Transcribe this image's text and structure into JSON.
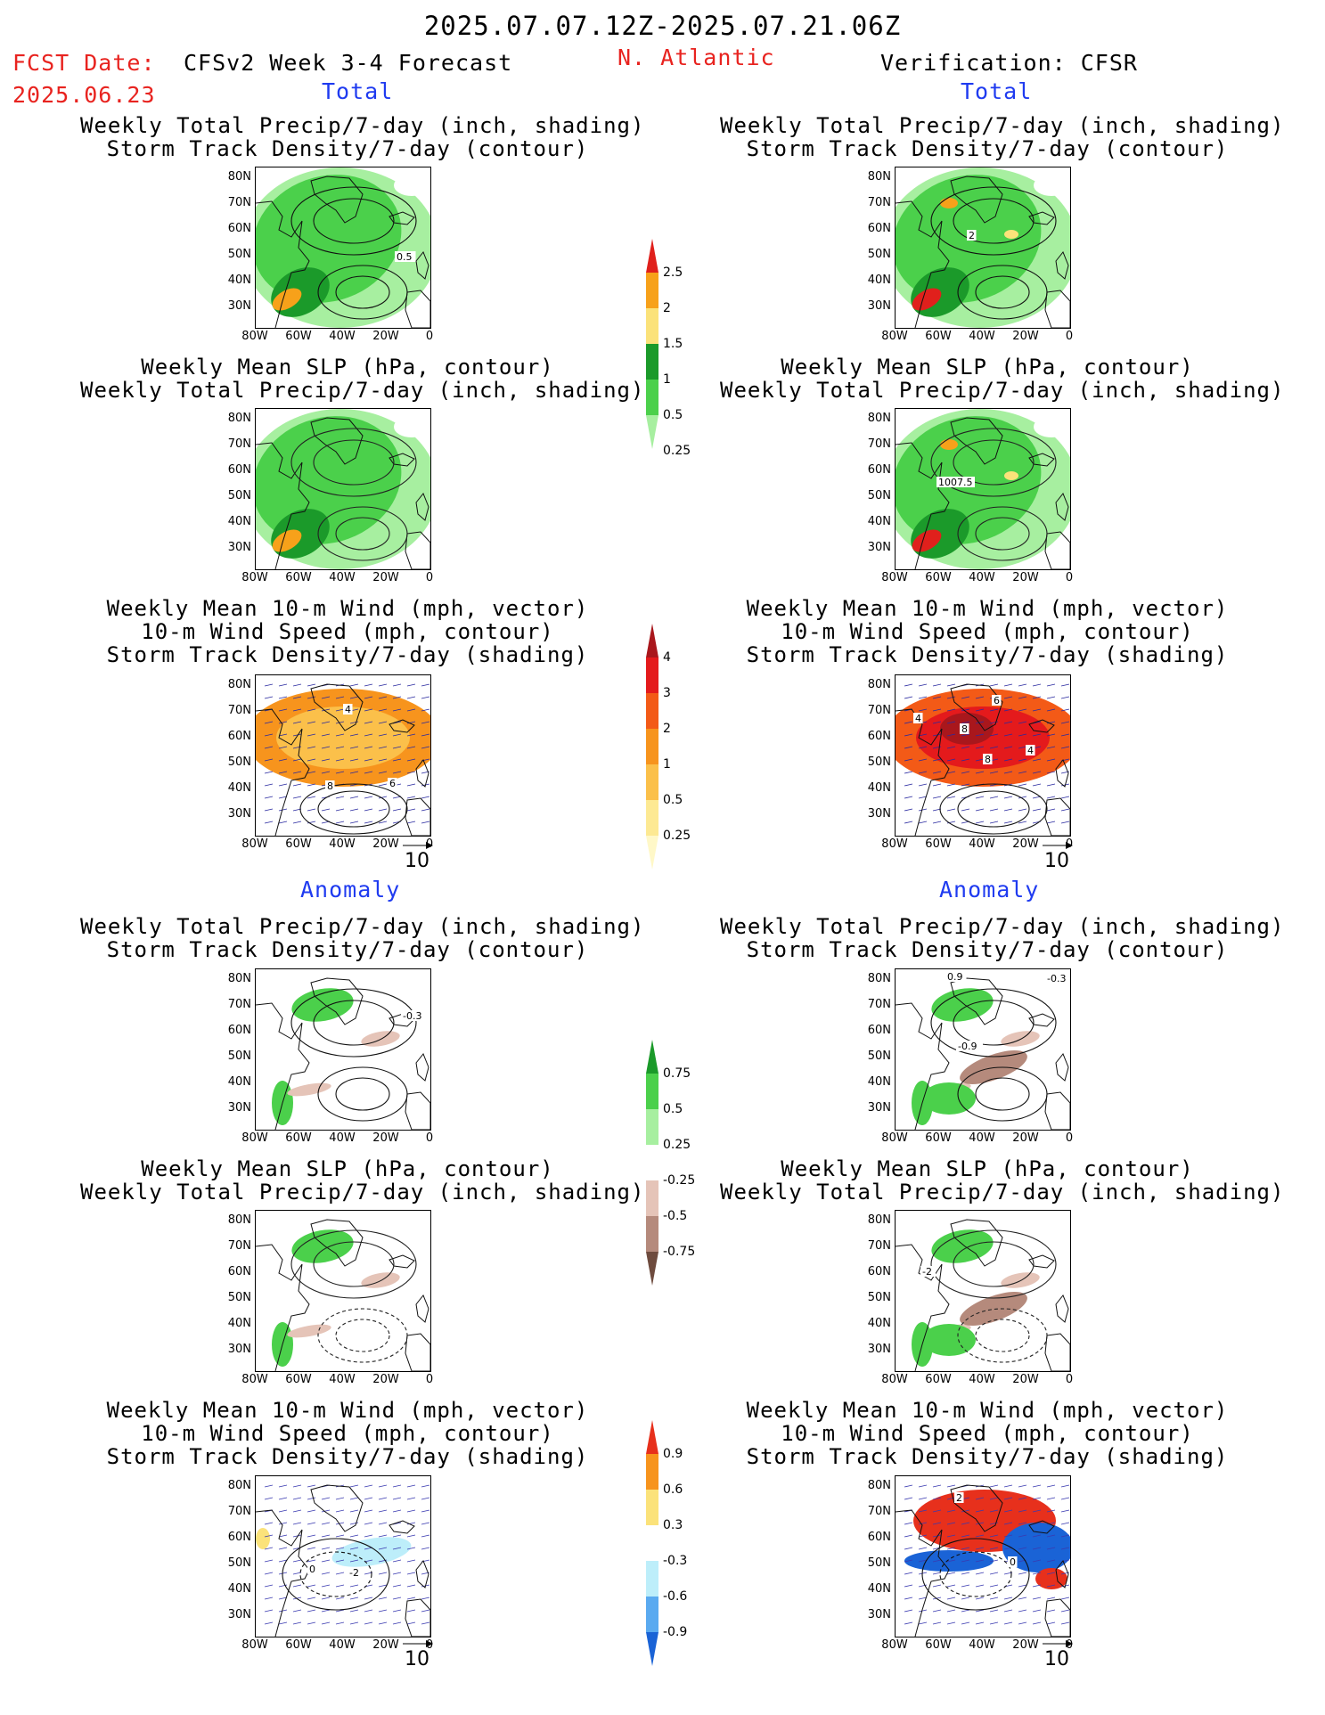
{
  "header": {
    "date_range": "2025.07.07.12Z-2025.07.21.06Z",
    "fcst_label": "FCST Date:",
    "fcst_date": "2025.06.23",
    "model_title": "CFSv2 Week 3-4 Forecast",
    "region": "N. Atlantic",
    "verification": "Verification: CFSR",
    "section_total": "Total",
    "section_anomaly": "Anomaly"
  },
  "panel_titles": {
    "precip_storm": [
      "Weekly Total Precip/7-day (inch, shading)",
      "Storm Track Density/7-day (contour)"
    ],
    "slp_precip": [
      "Weekly Mean SLP (hPa, contour)",
      "Weekly Total Precip/7-day (inch, shading)"
    ],
    "wind_storm": [
      "Weekly Mean 10-m Wind (mph, vector)",
      "10-m Wind Speed (mph, contour)",
      "Storm Track Density/7-day (shading)"
    ]
  },
  "axes": {
    "lat_ticks": [
      "80N",
      "70N",
      "60N",
      "50N",
      "40N",
      "30N"
    ],
    "lon_ticks": [
      "80W",
      "60W",
      "40W",
      "20W",
      "0"
    ]
  },
  "contour_labels": {
    "fc_total_storm": "0.5",
    "obs_total_storm": "2",
    "obs_total_slp": "1007.5",
    "fc_total_wind": [
      "4",
      "8",
      "6"
    ],
    "obs_total_wind": [
      "4",
      "6",
      "8",
      "4",
      "8"
    ],
    "fc_anom_storm": "-0.3",
    "obs_anom_storm": [
      "0.9",
      "-0.3",
      "-0.9"
    ],
    "obs_anom_slp": "-2",
    "fc_anom_wind": [
      "0",
      "-2"
    ],
    "obs_anom_wind": [
      "2",
      "0"
    ]
  },
  "vector_ref": "10",
  "colorbars": {
    "precip_total": {
      "labels": [
        "2.5",
        "2",
        "1.5",
        "1",
        "0.5",
        "0.25"
      ],
      "colors": [
        "#e0201c",
        "#f7a11a",
        "#fbe27a",
        "#1b9a2a",
        "#4bd04b",
        "#a7efa0"
      ]
    },
    "storm_total": {
      "labels": [
        "4",
        "3",
        "2",
        "1",
        "0.5",
        "0.25"
      ],
      "colors": [
        "#a9171c",
        "#e41a1c",
        "#f35a17",
        "#f7941d",
        "#fbc04a",
        "#fde993",
        "#fff8c8"
      ]
    },
    "precip_anom": {
      "labels": [
        "0.75",
        "0.5",
        "0.25",
        "-0.25",
        "-0.5",
        "-0.75"
      ],
      "colors": [
        "#1b9a2a",
        "#4bd04b",
        "#a7efa0",
        "#ffffff",
        "#e5c4b8",
        "#b58a7c",
        "#6e4b3e"
      ]
    },
    "storm_anom": {
      "labels": [
        "0.9",
        "0.6",
        "0.3",
        "-0.3",
        "-0.6",
        "-0.9"
      ],
      "colors": [
        "#e7301c",
        "#f7941d",
        "#fbe27a",
        "#ffffff",
        "#bdeefa",
        "#5aaaf0",
        "#1a63d6"
      ]
    }
  }
}
